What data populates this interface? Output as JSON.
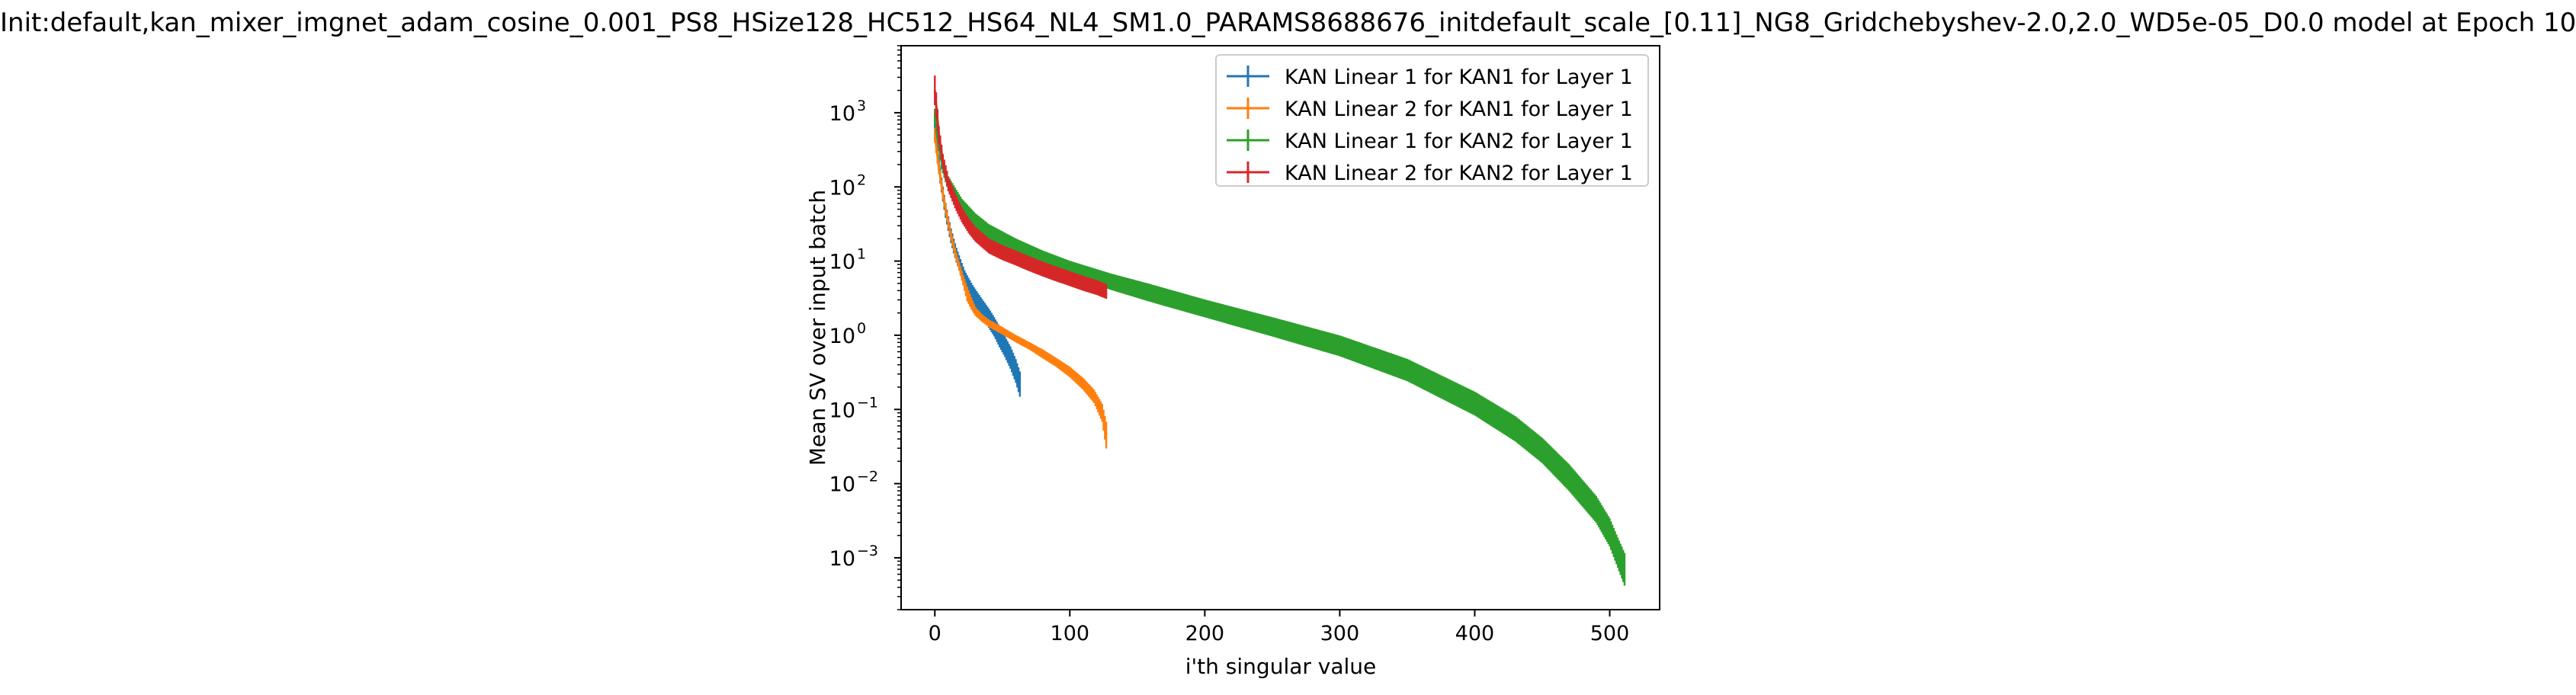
{
  "chart_data": {
    "type": "line",
    "title": "Init:default,kan_mixer_imgnet_adam_cosine_0.001_PS8_HSize128_HC512_HS64_NL4_SM1.0_PARAMS8688676_initdefault_scale_[0.11]_NG8_Gridchebyshev-2.0,2.0_WD5e-05_D0.0 model at Epoch 10",
    "xlabel": "i'th singular value",
    "ylabel": "Mean SV over input batch",
    "xscale": "linear",
    "yscale": "log",
    "xlim": [
      -25,
      537
    ],
    "ylim": [
      0.0002,
      8000
    ],
    "xticks": [
      {
        "value": 0,
        "label": "0"
      },
      {
        "value": 100,
        "label": "100"
      },
      {
        "value": 200,
        "label": "200"
      },
      {
        "value": 300,
        "label": "300"
      },
      {
        "value": 400,
        "label": "400"
      },
      {
        "value": 500,
        "label": "500"
      }
    ],
    "yticks": [
      {
        "exp": 3,
        "label": "10"
      },
      {
        "exp": 2,
        "label": "10"
      },
      {
        "exp": 1,
        "label": "10"
      },
      {
        "exp": 0,
        "label": "10"
      },
      {
        "exp": -1,
        "label": "10"
      },
      {
        "exp": -2,
        "label": "10"
      },
      {
        "exp": -3,
        "label": "10"
      }
    ],
    "ytick_exponents": [
      "3",
      "2",
      "1",
      "0",
      "−1",
      "−2",
      "−3"
    ],
    "grid": false,
    "legend_position": "top-right",
    "series": [
      {
        "name": "KAN Linear 1 for KAN1 for Layer 1",
        "color": "#1f77b4",
        "x": [
          0,
          2,
          4,
          6,
          8,
          10,
          12,
          14,
          16,
          18,
          20,
          22,
          25,
          28,
          32,
          36,
          40,
          44,
          48,
          52,
          56,
          60,
          63
        ],
        "y": [
          800,
          300,
          140,
          80,
          48,
          32,
          22,
          16,
          12,
          9.5,
          7.5,
          6.0,
          4.5,
          3.6,
          2.8,
          2.2,
          1.7,
          1.3,
          0.95,
          0.7,
          0.5,
          0.33,
          0.22
        ],
        "err": [
          0.12,
          0.1,
          0.1,
          0.1,
          0.1,
          0.1,
          0.1,
          0.1,
          0.1,
          0.1,
          0.1,
          0.1,
          0.12,
          0.12,
          0.12,
          0.12,
          0.13,
          0.13,
          0.14,
          0.14,
          0.15,
          0.16,
          0.17
        ]
      },
      {
        "name": "KAN Linear 2 for KAN1 for Layer 1",
        "color": "#ff7f0e",
        "x": [
          0,
          3,
          6,
          9,
          12,
          15,
          18,
          21,
          24,
          27,
          30,
          35,
          40,
          50,
          60,
          70,
          80,
          90,
          100,
          110,
          118,
          124,
          127
        ],
        "y": [
          500,
          180,
          80,
          40,
          22,
          13,
          8.5,
          5.5,
          3.6,
          2.7,
          2.1,
          1.7,
          1.45,
          1.15,
          0.9,
          0.72,
          0.56,
          0.43,
          0.32,
          0.22,
          0.15,
          0.09,
          0.045
        ],
        "err": [
          0.1,
          0.08,
          0.06,
          0.06,
          0.06,
          0.06,
          0.06,
          0.07,
          0.1,
          0.08,
          0.06,
          0.05,
          0.05,
          0.05,
          0.05,
          0.05,
          0.06,
          0.06,
          0.07,
          0.08,
          0.09,
          0.12,
          0.18
        ]
      },
      {
        "name": "KAN Linear 1 for KAN2 for Layer 1",
        "color": "#2ca02c",
        "x": [
          0,
          5,
          10,
          20,
          30,
          40,
          60,
          80,
          100,
          130,
          160,
          200,
          250,
          300,
          350,
          400,
          430,
          450,
          470,
          490,
          500,
          505,
          511
        ],
        "y": [
          900,
          220,
          110,
          55,
          35,
          25,
          16,
          11,
          8.0,
          5.3,
          3.7,
          2.3,
          1.3,
          0.72,
          0.34,
          0.12,
          0.055,
          0.028,
          0.012,
          0.0045,
          0.0022,
          0.0013,
          0.0007
        ],
        "err": [
          0.1,
          0.1,
          0.1,
          0.1,
          0.1,
          0.1,
          0.1,
          0.1,
          0.1,
          0.11,
          0.12,
          0.12,
          0.13,
          0.14,
          0.15,
          0.16,
          0.17,
          0.17,
          0.18,
          0.18,
          0.19,
          0.2,
          0.22
        ]
      },
      {
        "name": "KAN Linear 2 for KAN2 for Layer 1",
        "color": "#d62728",
        "x": [
          0,
          3,
          6,
          10,
          15,
          20,
          25,
          30,
          40,
          50,
          60,
          70,
          80,
          90,
          100,
          110,
          120,
          127
        ],
        "y": [
          2000,
          500,
          220,
          110,
          65,
          42,
          30,
          23,
          16,
          13,
          11,
          9.2,
          7.8,
          6.7,
          5.8,
          5.0,
          4.4,
          3.9
        ],
        "err": [
          0.2,
          0.12,
          0.1,
          0.1,
          0.1,
          0.1,
          0.1,
          0.1,
          0.1,
          0.1,
          0.1,
          0.1,
          0.1,
          0.1,
          0.1,
          0.1,
          0.1,
          0.1
        ]
      }
    ]
  }
}
